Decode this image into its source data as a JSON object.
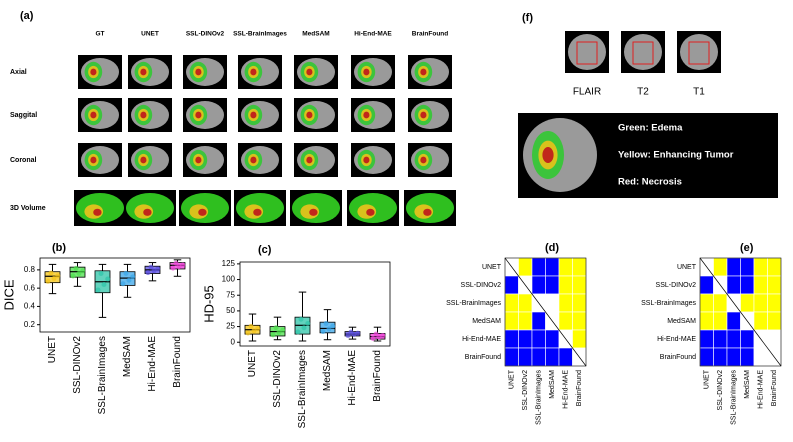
{
  "panel_a": {
    "label": "(a)",
    "columns": [
      "GT",
      "UNET",
      "SSL-DINOv2",
      "SSL-BrainImages",
      "MedSAM",
      "Hi-End-MAE",
      "BrainFound"
    ],
    "rows": [
      "Axial",
      "Saggital",
      "Coronal",
      "3D Volume"
    ]
  },
  "panel_f": {
    "label": "(f)",
    "sequences": [
      "FLAIR",
      "T2",
      "T1"
    ],
    "legend": [
      "Green: Edema",
      "Yellow: Enhancing Tumor",
      "Red: Necrosis"
    ]
  },
  "chart_data": [
    {
      "type": "box",
      "label": "(b)",
      "ylabel": "DICE",
      "categories": [
        "UNET",
        "SSL-DINOv2",
        "SSL-BrainImages",
        "MedSAM",
        "Hi-End-MAE",
        "BrainFound"
      ],
      "stats": [
        [
          0.54,
          0.66,
          0.73,
          0.78,
          0.86
        ],
        [
          0.62,
          0.72,
          0.78,
          0.83,
          0.88
        ],
        [
          0.28,
          0.55,
          0.67,
          0.79,
          0.86
        ],
        [
          0.5,
          0.63,
          0.71,
          0.78,
          0.86
        ],
        [
          0.68,
          0.76,
          0.8,
          0.84,
          0.88
        ],
        [
          0.73,
          0.81,
          0.85,
          0.88,
          0.91
        ]
      ],
      "colors": [
        "#f5c518",
        "#4ee04e",
        "#2ec4a8",
        "#3ba6e8",
        "#5a4ee0",
        "#ee44d8"
      ],
      "ylim": [
        0.12,
        0.93
      ],
      "yticks": [
        0.2,
        0.4,
        0.6,
        0.8
      ]
    },
    {
      "type": "box",
      "label": "(c)",
      "ylabel": "HD-95",
      "categories": [
        "UNET",
        "SSL-DINOv2",
        "SSL-BrainImages",
        "MedSAM",
        "Hi-End-MAE",
        "BrainFound"
      ],
      "stats": [
        [
          2,
          13,
          20,
          27,
          45
        ],
        [
          4,
          10,
          17,
          25,
          40
        ],
        [
          2,
          13,
          27,
          40,
          80
        ],
        [
          4,
          15,
          22,
          32,
          52
        ],
        [
          5,
          10,
          13,
          17,
          24
        ],
        [
          2,
          5,
          9,
          14,
          24
        ]
      ],
      "colors": [
        "#f5c518",
        "#4ee04e",
        "#2ec4a8",
        "#3ba6e8",
        "#5a4ee0",
        "#ee44d8"
      ],
      "ylim": [
        -6,
        128
      ],
      "yticks": [
        0,
        25,
        50,
        75,
        100,
        125
      ]
    },
    {
      "type": "matrix",
      "label": "(d)",
      "rows": [
        "UNET",
        "SSL-DINOv2",
        "SSL-BrainImages",
        "MedSAM",
        "Hi-End-MAE",
        "BrainFound"
      ],
      "columns": [
        "UNET",
        "SSL-DINOv2",
        "SSL-BrainImages",
        "MedSAM",
        "Hi-End-MAE",
        "BrainFound"
      ],
      "cells": [
        [
          "#ffffff",
          "#ffff00",
          "#0000ff",
          "#0000ff",
          "#ffff00",
          "#ffff00"
        ],
        [
          "#0000ff",
          "#ffffff",
          "#0000ff",
          "#0000ff",
          "#ffff00",
          "#ffff00"
        ],
        [
          "#ffff00",
          "#ffff00",
          "#ffffff",
          "#ffffff",
          "#ffff00",
          "#ffff00"
        ],
        [
          "#ffff00",
          "#ffff00",
          "#0000ff",
          "#ffffff",
          "#ffff00",
          "#ffff00"
        ],
        [
          "#0000ff",
          "#0000ff",
          "#0000ff",
          "#0000ff",
          "#ffffff",
          "#ffff00"
        ],
        [
          "#0000ff",
          "#0000ff",
          "#0000ff",
          "#0000ff",
          "#0000ff",
          "#ffffff"
        ]
      ]
    },
    {
      "type": "matrix",
      "label": "(e)",
      "rows": [
        "UNET",
        "SSL-DINOv2",
        "SSL-BrainImages",
        "MedSAM",
        "Hi-End-MAE",
        "BrainFound"
      ],
      "columns": [
        "UNET",
        "SSL-DINOv2",
        "SSL-BrainImages",
        "MedSAM",
        "Hi-End-MAE",
        "BrainFound"
      ],
      "cells": [
        [
          "#ffffff",
          "#ffff00",
          "#0000ff",
          "#0000ff",
          "#ffff00",
          "#ffff00"
        ],
        [
          "#0000ff",
          "#ffffff",
          "#0000ff",
          "#0000ff",
          "#ffff00",
          "#ffff00"
        ],
        [
          "#ffff00",
          "#ffff00",
          "#ffffff",
          "#ffff00",
          "#ffff00",
          "#ffff00"
        ],
        [
          "#ffff00",
          "#ffff00",
          "#0000ff",
          "#ffffff",
          "#ffff00",
          "#ffff00"
        ],
        [
          "#0000ff",
          "#0000ff",
          "#0000ff",
          "#0000ff",
          "#ffffff",
          "#ffffff"
        ],
        [
          "#0000ff",
          "#0000ff",
          "#0000ff",
          "#0000ff",
          "#ffffff",
          "#ffffff"
        ]
      ]
    }
  ]
}
